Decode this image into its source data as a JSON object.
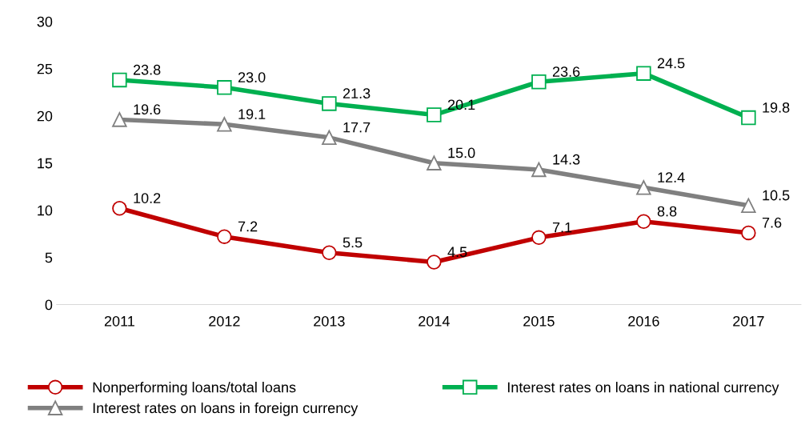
{
  "chart_data": {
    "type": "line",
    "categories": [
      "2011",
      "2012",
      "2013",
      "2014",
      "2015",
      "2016",
      "2017"
    ],
    "series": [
      {
        "name": "Nonperforming loans/total loans",
        "color": "#c00000",
        "marker": "circle",
        "values": [
          10.2,
          7.2,
          5.5,
          4.5,
          7.1,
          8.8,
          7.6
        ],
        "value_labels": [
          "10.2",
          "7.2",
          "5.5",
          "4.5",
          "7.1",
          "8.8",
          "7.6"
        ]
      },
      {
        "name": "Interest rates on loans in national currency",
        "color": "#00b050",
        "marker": "square",
        "values": [
          23.8,
          23.0,
          21.3,
          20.1,
          23.6,
          24.5,
          19.8
        ],
        "value_labels": [
          "23.8",
          "23.0",
          "21.3",
          "20.1",
          "23.6",
          "24.5",
          "19.8"
        ]
      },
      {
        "name": "Interest rates on loans in foreign currency",
        "color": "#808080",
        "marker": "triangle",
        "values": [
          19.6,
          19.1,
          17.7,
          15.0,
          14.3,
          12.4,
          10.5
        ],
        "value_labels": [
          "19.6",
          "19.1",
          "17.7",
          "15.0",
          "14.3",
          "12.4",
          "10.5"
        ]
      }
    ],
    "ylim": [
      0,
      30
    ],
    "yticks": [
      0,
      5,
      10,
      15,
      20,
      25,
      30
    ],
    "grid": false,
    "legend": "bottom",
    "line_style": "solid"
  }
}
